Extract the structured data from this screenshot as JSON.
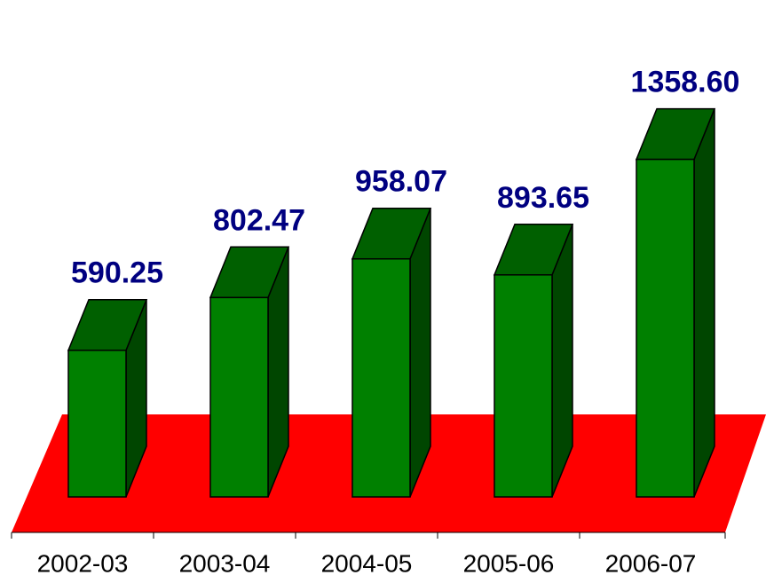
{
  "chart_data": {
    "type": "bar3d",
    "categories": [
      "2002-03",
      "2003-04",
      "2004-05",
      "2005-06",
      "2006-07"
    ],
    "values": [
      590.25,
      802.47,
      958.07,
      893.65,
      1358.6
    ],
    "value_labels": [
      "590.25",
      "802.47",
      "958.07",
      "893.65",
      "1358.60"
    ],
    "color": "#008000",
    "floor_color": "#ff0000",
    "label_color": "#000080"
  }
}
